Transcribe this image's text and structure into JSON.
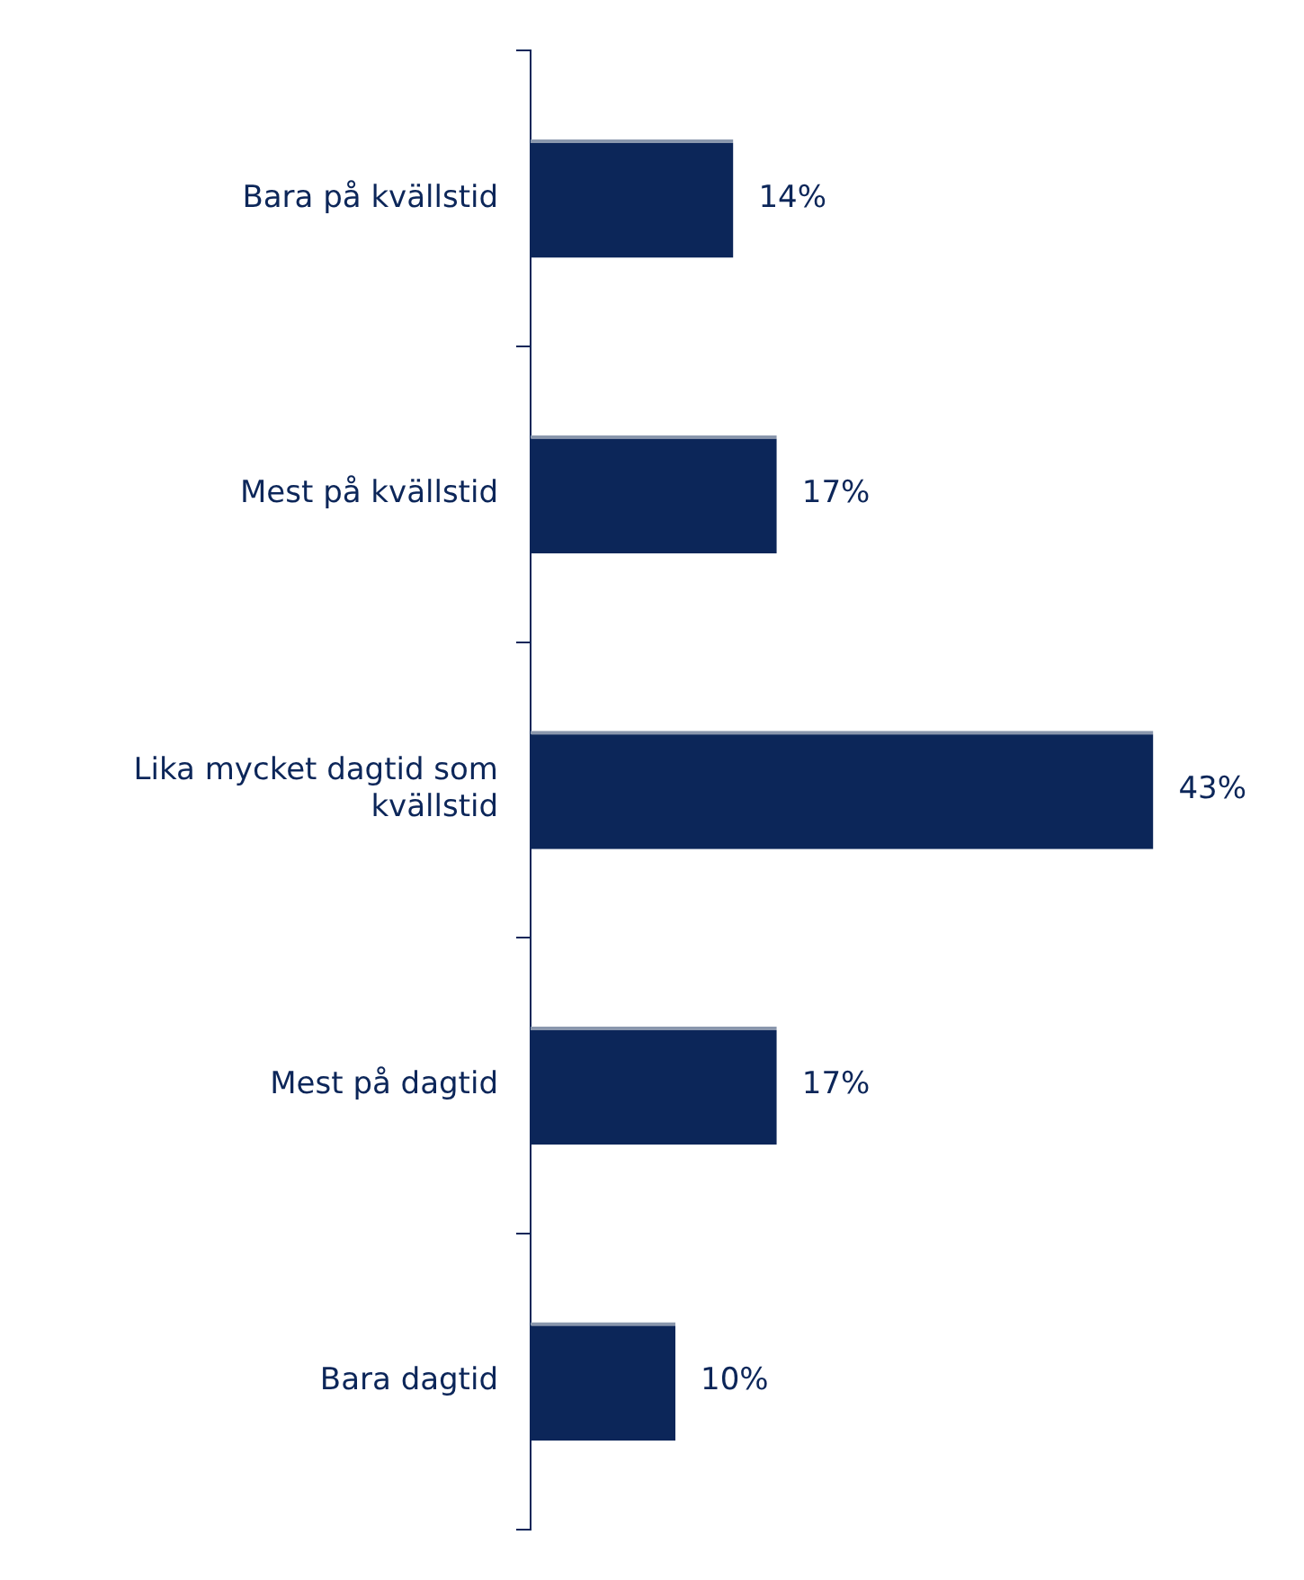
{
  "chart_data": {
    "type": "bar",
    "orientation": "horizontal",
    "categories": [
      "Bara på kvällstid",
      "Mest på kvällstid",
      "Lika mycket dagtid som kvällstid",
      "Mest på dagtid",
      "Bara dagtid"
    ],
    "values": [
      14,
      17,
      43,
      17,
      10
    ],
    "color": "#0c2659",
    "value_labels": [
      "14%",
      "17%",
      "43%",
      "17%",
      "10%"
    ],
    "legend": false
  }
}
